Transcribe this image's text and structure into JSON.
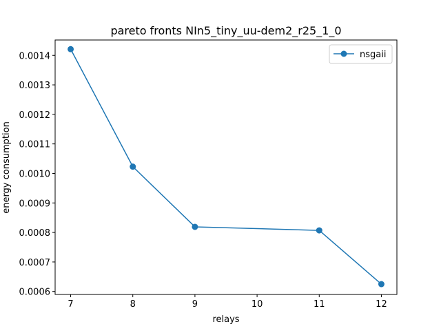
{
  "chart_data": {
    "type": "line",
    "title": "pareto fronts NIn5_tiny_uu-dem2_r25_1_0",
    "xlabel": "relays",
    "ylabel": "energy consumption",
    "x_ticks": [
      "7",
      "8",
      "9",
      "10",
      "11",
      "12"
    ],
    "y_ticks": [
      "0.0006",
      "0.0007",
      "0.0008",
      "0.0009",
      "0.0010",
      "0.0011",
      "0.0012",
      "0.0013",
      "0.0014"
    ],
    "xlim": [
      6.75,
      12.25
    ],
    "ylim": [
      0.00059,
      0.001452
    ],
    "legend_position": "top-right",
    "series": [
      {
        "name": "nsgaii",
        "color": "#1f77b4",
        "x": [
          7,
          8,
          9,
          11,
          12
        ],
        "y": [
          0.001421,
          0.001023,
          0.000819,
          0.000807,
          0.000625
        ]
      }
    ]
  }
}
